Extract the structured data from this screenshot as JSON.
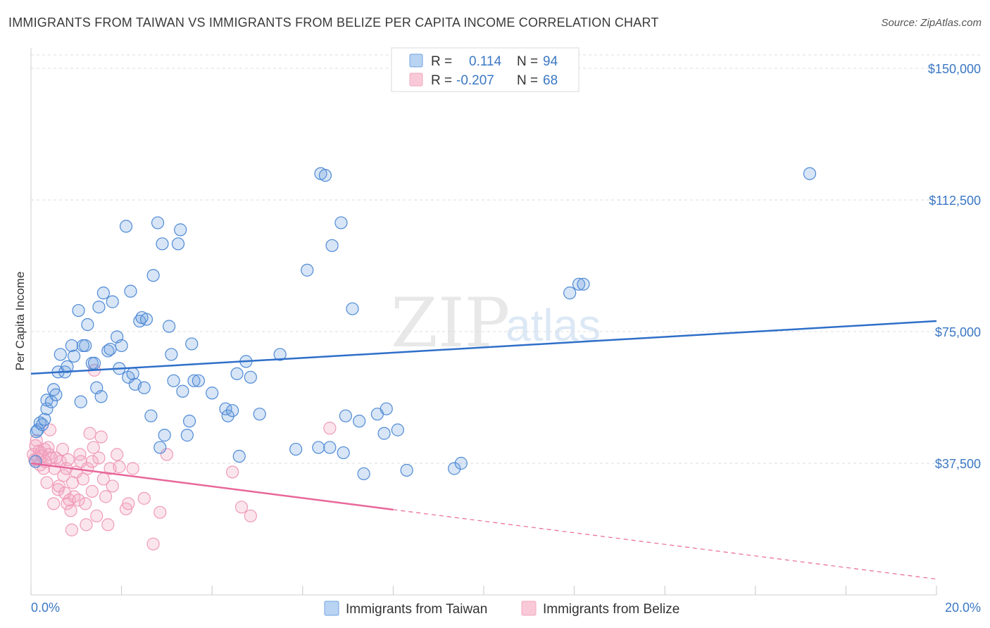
{
  "title": "IMMIGRANTS FROM TAIWAN VS IMMIGRANTS FROM BELIZE PER CAPITA INCOME CORRELATION CHART",
  "source": "Source: ZipAtlas.com",
  "watermark": {
    "zip": "ZIP",
    "atlas": "atlas"
  },
  "colors": {
    "taiwan": "#6fa3e0",
    "taiwan_line": "#2f6fc9",
    "belize": "#f3a8c2",
    "belize_line": "#e8679a",
    "accent_text": "#3b78c4"
  },
  "legend": {
    "r_label": "R =",
    "n_label": "N =",
    "rows": [
      {
        "r": "0.114",
        "n": "94"
      },
      {
        "r": "-0.207",
        "n": "68"
      }
    ]
  },
  "chart_data": {
    "type": "scatter",
    "xlabel": "",
    "ylabel": "Per Capita Income",
    "xlim": [
      0,
      20
    ],
    "ylim": [
      0,
      157500
    ],
    "x_tick_labels": [
      "0.0%",
      "20.0%"
    ],
    "y_ticks": [
      37500,
      75000,
      112500,
      150000
    ],
    "y_tick_labels": [
      "$37,500",
      "$75,000",
      "$112,500",
      "$150,000"
    ],
    "grid": "horizontal dashed",
    "legend_position": "top-center",
    "series": [
      {
        "name": "Immigrants from Taiwan",
        "trend": {
          "x": [
            0,
            20
          ],
          "y": [
            63000,
            78000
          ],
          "solid_to": 20
        },
        "points": [
          [
            0.15,
            47000
          ],
          [
            0.2,
            49000
          ],
          [
            0.25,
            48500
          ],
          [
            0.3,
            50000
          ],
          [
            0.35,
            53000
          ],
          [
            0.35,
            55500
          ],
          [
            0.45,
            55000
          ],
          [
            0.5,
            58500
          ],
          [
            0.55,
            57000
          ],
          [
            0.6,
            63500
          ],
          [
            0.65,
            68500
          ],
          [
            0.75,
            63500
          ],
          [
            0.8,
            65000
          ],
          [
            0.9,
            71000
          ],
          [
            0.95,
            68000
          ],
          [
            1.05,
            81000
          ],
          [
            1.1,
            55000
          ],
          [
            1.15,
            71000
          ],
          [
            1.2,
            71000
          ],
          [
            1.25,
            77000
          ],
          [
            1.35,
            66000
          ],
          [
            1.4,
            66000
          ],
          [
            1.45,
            59000
          ],
          [
            1.5,
            82000
          ],
          [
            1.55,
            56500
          ],
          [
            1.6,
            86000
          ],
          [
            1.7,
            69500
          ],
          [
            1.75,
            70000
          ],
          [
            1.8,
            83500
          ],
          [
            1.9,
            73500
          ],
          [
            1.95,
            64500
          ],
          [
            2.0,
            71000
          ],
          [
            2.1,
            105000
          ],
          [
            2.15,
            62000
          ],
          [
            2.2,
            86500
          ],
          [
            2.25,
            63000
          ],
          [
            2.3,
            60000
          ],
          [
            2.4,
            78000
          ],
          [
            2.45,
            79000
          ],
          [
            2.5,
            59000
          ],
          [
            2.55,
            78500
          ],
          [
            2.65,
            51000
          ],
          [
            2.7,
            91000
          ],
          [
            2.8,
            106000
          ],
          [
            2.85,
            42000
          ],
          [
            2.9,
            100000
          ],
          [
            2.95,
            45500
          ],
          [
            3.05,
            76500
          ],
          [
            3.1,
            68500
          ],
          [
            3.15,
            61000
          ],
          [
            3.25,
            100000
          ],
          [
            3.3,
            104000
          ],
          [
            3.35,
            58000
          ],
          [
            3.45,
            45500
          ],
          [
            3.5,
            49500
          ],
          [
            3.55,
            71500
          ],
          [
            3.6,
            61000
          ],
          [
            3.7,
            61000
          ],
          [
            4.0,
            57500
          ],
          [
            4.3,
            53000
          ],
          [
            4.35,
            51000
          ],
          [
            4.45,
            52500
          ],
          [
            4.55,
            63000
          ],
          [
            4.6,
            39500
          ],
          [
            4.75,
            66500
          ],
          [
            4.85,
            62000
          ],
          [
            5.05,
            51500
          ],
          [
            5.5,
            68500
          ],
          [
            5.85,
            41500
          ],
          [
            6.1,
            92500
          ],
          [
            6.35,
            42000
          ],
          [
            6.4,
            120000
          ],
          [
            6.5,
            119500
          ],
          [
            6.6,
            42000
          ],
          [
            6.65,
            99500
          ],
          [
            6.85,
            106000
          ],
          [
            6.9,
            40500
          ],
          [
            6.95,
            51000
          ],
          [
            7.1,
            81500
          ],
          [
            7.25,
            49500
          ],
          [
            7.35,
            34500
          ],
          [
            7.65,
            51500
          ],
          [
            7.8,
            46000
          ],
          [
            7.85,
            53000
          ],
          [
            8.1,
            47000
          ],
          [
            8.3,
            35500
          ],
          [
            9.35,
            36000
          ],
          [
            9.5,
            37500
          ],
          [
            11.9,
            86000
          ],
          [
            12.1,
            88500
          ],
          [
            12.2,
            88500
          ],
          [
            17.2,
            120000
          ],
          [
            0.1,
            38000
          ],
          [
            0.12,
            46500
          ]
        ]
      },
      {
        "name": "Immigrants from Belize",
        "trend": {
          "x": [
            0,
            20
          ],
          "y": [
            37500,
            4500
          ],
          "solid_to": 8
        },
        "points": [
          [
            0.05,
            40000
          ],
          [
            0.08,
            38500
          ],
          [
            0.1,
            42500
          ],
          [
            0.12,
            44000
          ],
          [
            0.15,
            39000
          ],
          [
            0.18,
            41000
          ],
          [
            0.2,
            37000
          ],
          [
            0.22,
            40500
          ],
          [
            0.25,
            39500
          ],
          [
            0.28,
            36000
          ],
          [
            0.3,
            41500
          ],
          [
            0.32,
            38000
          ],
          [
            0.35,
            32000
          ],
          [
            0.38,
            42000
          ],
          [
            0.4,
            40000
          ],
          [
            0.42,
            47000
          ],
          [
            0.45,
            39000
          ],
          [
            0.5,
            26000
          ],
          [
            0.52,
            36000
          ],
          [
            0.55,
            39000
          ],
          [
            0.6,
            30000
          ],
          [
            0.62,
            31000
          ],
          [
            0.65,
            38000
          ],
          [
            0.7,
            41500
          ],
          [
            0.72,
            34000
          ],
          [
            0.75,
            29000
          ],
          [
            0.78,
            36000
          ],
          [
            0.8,
            26000
          ],
          [
            0.82,
            38500
          ],
          [
            0.85,
            27000
          ],
          [
            0.88,
            24000
          ],
          [
            0.9,
            18500
          ],
          [
            0.92,
            32000
          ],
          [
            0.95,
            28000
          ],
          [
            1.0,
            35000
          ],
          [
            1.05,
            27000
          ],
          [
            1.08,
            40000
          ],
          [
            1.1,
            38000
          ],
          [
            1.15,
            33000
          ],
          [
            1.2,
            26000
          ],
          [
            1.22,
            20000
          ],
          [
            1.25,
            36000
          ],
          [
            1.3,
            46000
          ],
          [
            1.35,
            29500
          ],
          [
            1.38,
            42000
          ],
          [
            1.4,
            64000
          ],
          [
            1.45,
            22500
          ],
          [
            1.5,
            39000
          ],
          [
            1.55,
            45000
          ],
          [
            1.6,
            33000
          ],
          [
            1.65,
            28000
          ],
          [
            1.7,
            20000
          ],
          [
            1.75,
            36000
          ],
          [
            1.8,
            31000
          ],
          [
            1.9,
            40000
          ],
          [
            1.95,
            36500
          ],
          [
            2.1,
            24500
          ],
          [
            2.15,
            26000
          ],
          [
            2.25,
            36000
          ],
          [
            2.5,
            27500
          ],
          [
            2.7,
            14500
          ],
          [
            2.85,
            23500
          ],
          [
            3.0,
            40000
          ],
          [
            4.45,
            35000
          ],
          [
            4.65,
            25000
          ],
          [
            4.85,
            22500
          ],
          [
            6.6,
            47500
          ],
          [
            1.35,
            38000
          ]
        ]
      }
    ]
  },
  "bottom_legend": [
    "Immigrants from Taiwan",
    "Immigrants from Belize"
  ]
}
